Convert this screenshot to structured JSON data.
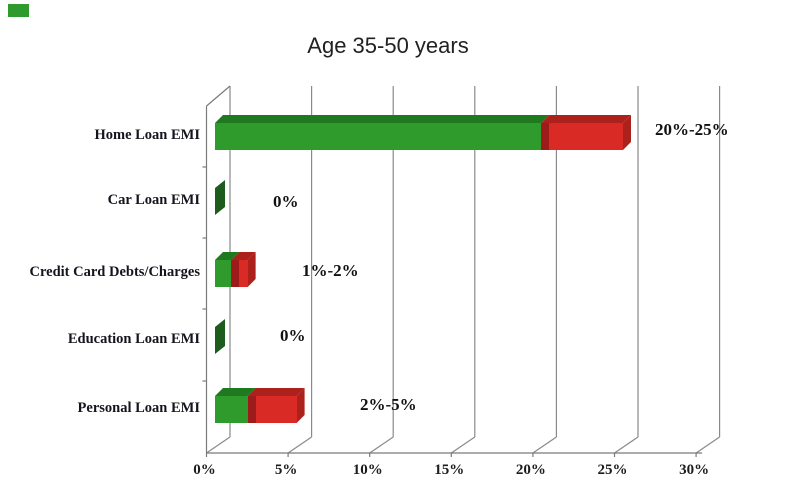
{
  "title": "Age 35-50 years",
  "chart_data": {
    "type": "bar",
    "orientation": "horizontal",
    "style": "3d-stacked-range",
    "title": "Age 35-50 years",
    "categories": [
      "Home Loan EMI",
      "Car Loan EMI",
      "Credit Card Debts/Charges",
      "Education Loan EMI",
      "Personal Loan EMI"
    ],
    "series": [
      {
        "name": "range-low-green",
        "color": "#2f9b2d",
        "values": [
          20,
          0,
          1,
          0,
          2
        ]
      },
      {
        "name": "range-high-red",
        "color": "#d92a25",
        "values": [
          5,
          0,
          1,
          0,
          3
        ]
      }
    ],
    "bar_labels": [
      "20%-25%",
      "0%",
      "1%-2%",
      "0%",
      "2%-5%"
    ],
    "x_ticks": [
      "0%",
      "5%",
      "10%",
      "15%",
      "20%",
      "25%",
      "30%"
    ],
    "x_tick_values": [
      0,
      5,
      10,
      15,
      20,
      25,
      30
    ],
    "x_range": [
      0,
      30
    ],
    "xlabel": "",
    "ylabel": "",
    "grid": true,
    "legend": "none"
  },
  "colors": {
    "green": "#2f9b2d",
    "green_dark": "#1f7a1f",
    "green_zero": "#1d5c1d",
    "red": "#d92a25",
    "red_dark": "#9e1b1b",
    "red_shade": "#ad211c",
    "grid": "#8a8a8a",
    "axis": "#7a7a7a",
    "text": "#1a1a1a"
  }
}
